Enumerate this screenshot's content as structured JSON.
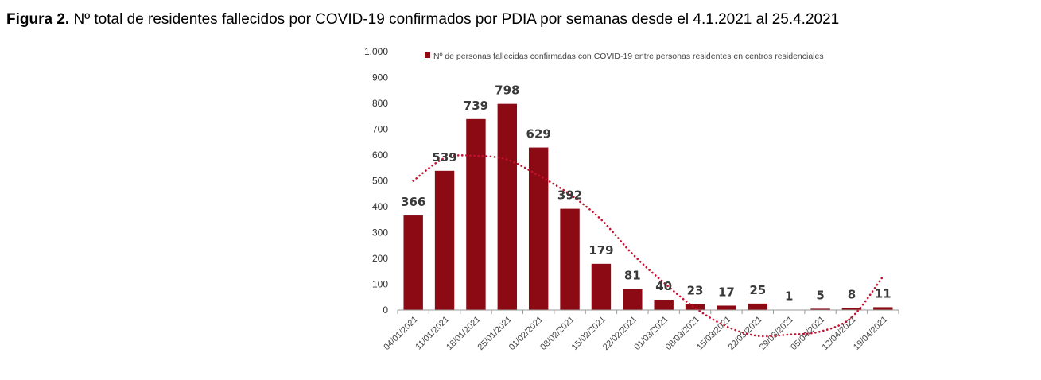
{
  "figure": {
    "title_prefix": "Figura 2.",
    "title_text": " Nº total de residentes fallecidos por COVID-19 confirmados por PDIA por semanas desde el 4.1.2021 al 25.4.2021"
  },
  "colors": {
    "bar": "#8B0A14",
    "trend": "#C8102E",
    "axis": "#999999"
  },
  "chart_data": {
    "type": "bar",
    "title": "Nº total de residentes fallecidos por COVID-19 confirmados por PDIA por semanas desde el 4.1.2021 al 25.4.2021",
    "xlabel": "",
    "ylabel": "",
    "ylim": [
      0,
      1000
    ],
    "yticks": [
      0,
      100,
      200,
      300,
      400,
      500,
      600,
      700,
      800,
      900,
      1000
    ],
    "ytick_labels": [
      "0",
      "100",
      "200",
      "300",
      "400",
      "500",
      "600",
      "700",
      "800",
      "900",
      "1.000"
    ],
    "categories": [
      "04/01/2021",
      "11/01/2021",
      "18/01/2021",
      "25/01/2021",
      "01/02/2021",
      "08/02/2021",
      "15/02/2021",
      "22/02/2021",
      "01/03/2021",
      "08/03/2021",
      "15/03/2021",
      "22/03/2021",
      "29/03/2021",
      "05/04/2021",
      "12/04/2021",
      "19/04/2021"
    ],
    "series": [
      {
        "name": "Nº de personas fallecidas confirmadas con COVID-19 entre personas residentes en centros residenciales",
        "values": [
          366,
          539,
          739,
          798,
          629,
          392,
          179,
          81,
          40,
          23,
          17,
          25,
          1,
          5,
          8,
          11
        ]
      }
    ],
    "trendline": {
      "type": "polynomial",
      "style": "dotted",
      "values": [
        500,
        588,
        597,
        582,
        521,
        448,
        350,
        217,
        106,
        8,
        -63,
        -100,
        -95,
        -83,
        -28,
        130
      ]
    },
    "legend_position": "top"
  }
}
